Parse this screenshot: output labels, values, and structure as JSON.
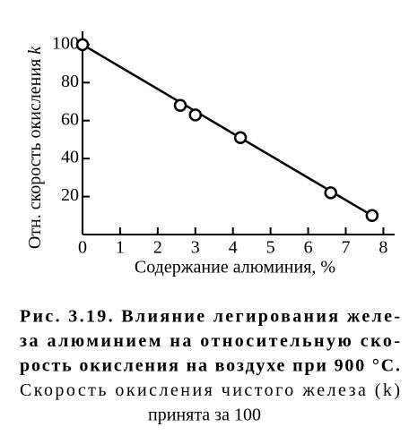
{
  "chart_data": {
    "type": "scatter",
    "x_label": "Содержание алюминия, %",
    "y_label": {
      "text": "Отн. скорость окисления",
      "symbol": "k"
    },
    "xlim": [
      0,
      8.3
    ],
    "ylim": [
      0,
      107
    ],
    "xticks": [
      0,
      1,
      2,
      3,
      4,
      5,
      6,
      7,
      8
    ],
    "yticks": [
      20,
      40,
      60,
      80,
      100
    ],
    "color": "#000000",
    "series": [
      {
        "type": "scatter",
        "x": [
          0,
          2.6,
          3.0,
          4.2,
          6.6,
          7.7
        ],
        "values": [
          100,
          68,
          63,
          51,
          22,
          10
        ]
      },
      {
        "type": "line",
        "x": [
          0,
          7.7
        ],
        "values": [
          100,
          10
        ]
      }
    ]
  },
  "caption": {
    "bold_lines": [
      "Рис. 3.19. Влияние легирования желе-",
      "за алюминием на относительную ско-",
      "рость окисления на воздухе при 900 °C."
    ],
    "lines": [
      "Скорость окисления чистого железа (k)",
      "принята за 100"
    ]
  }
}
